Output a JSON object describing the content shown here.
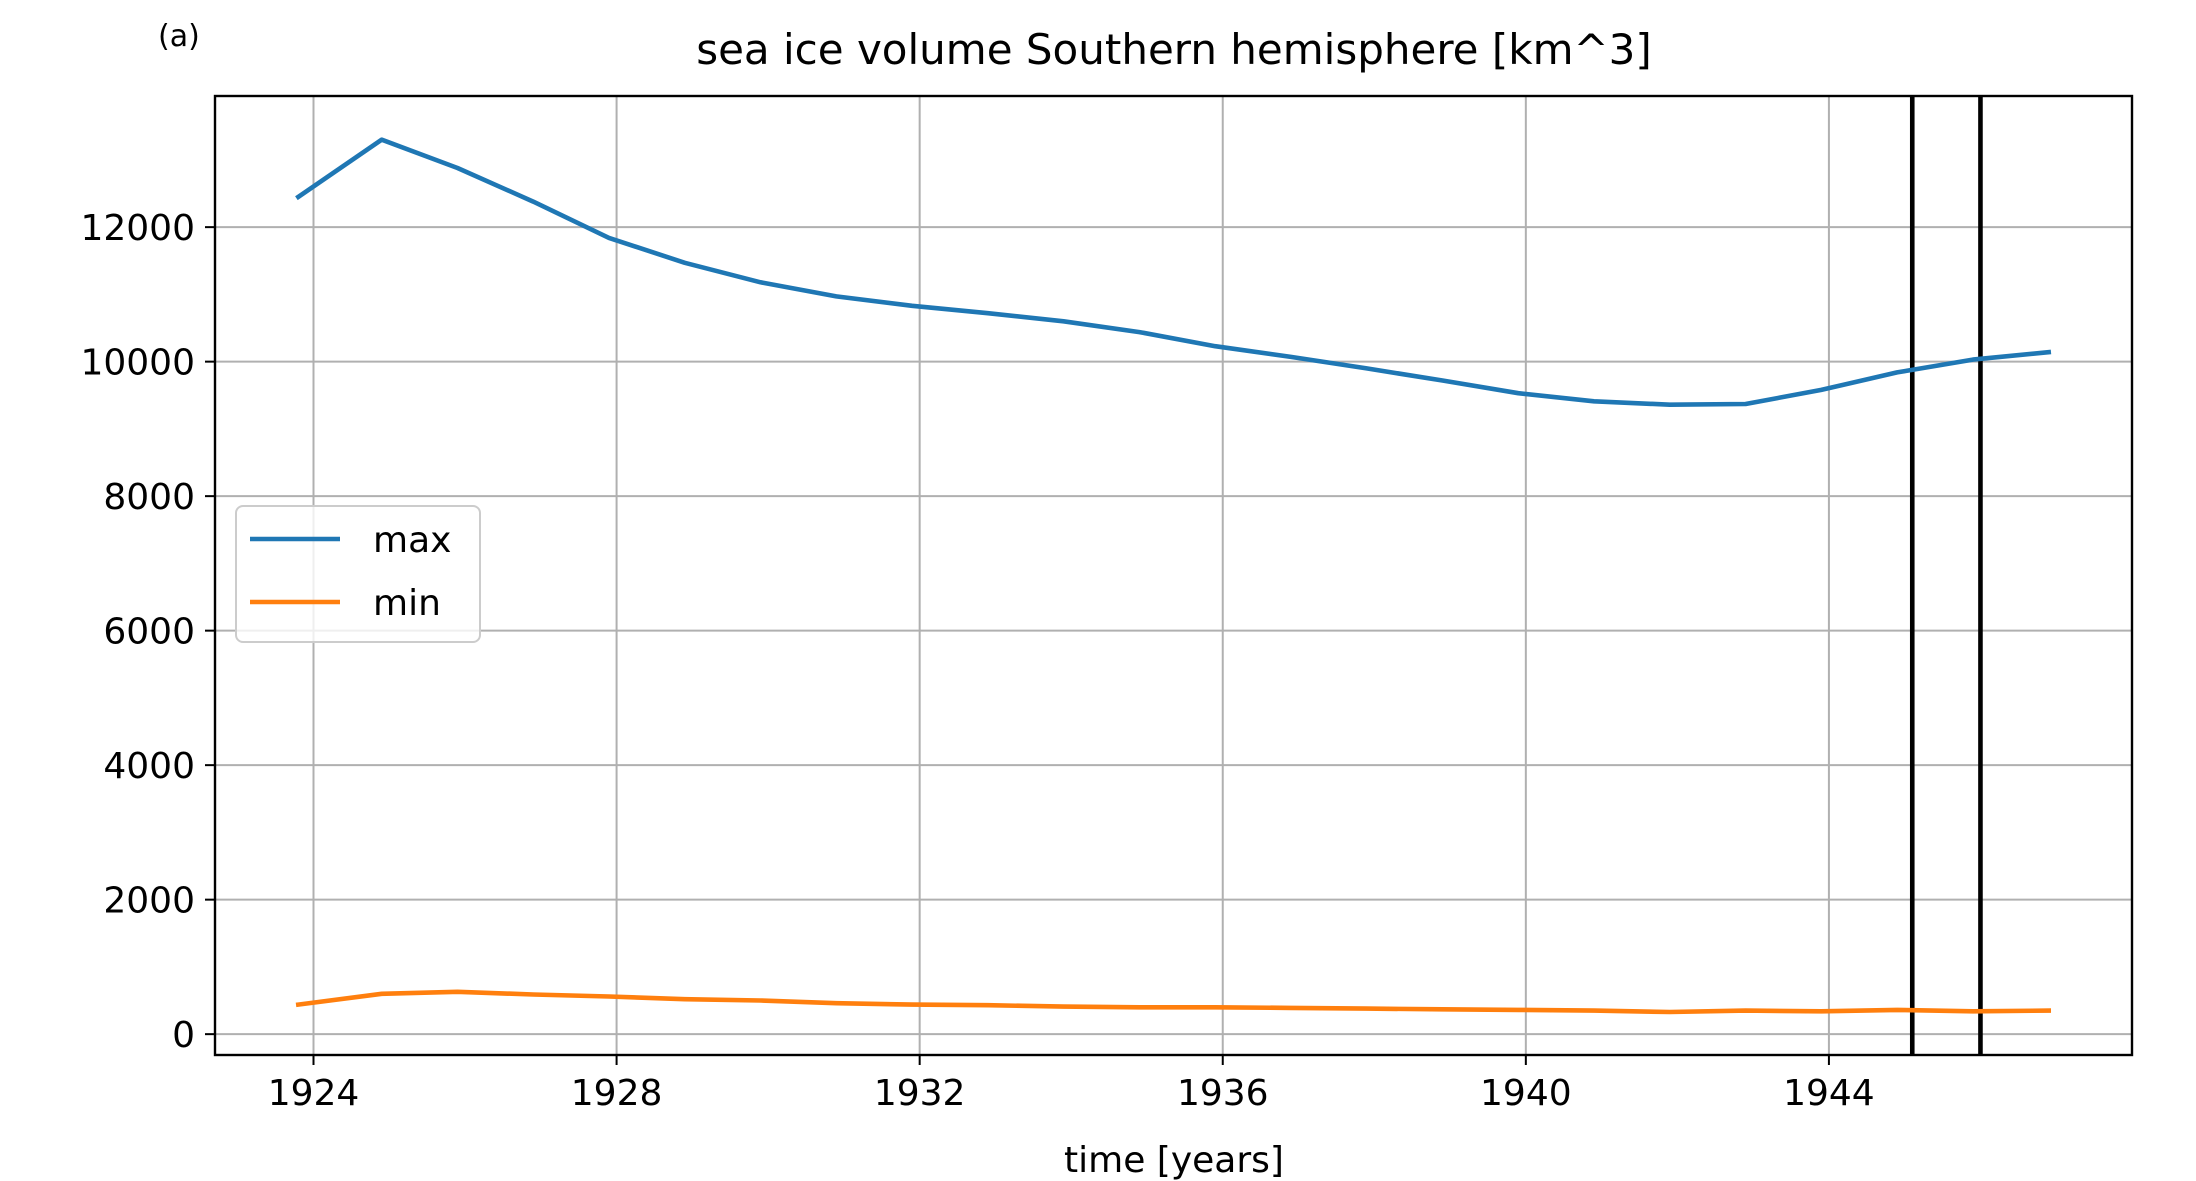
{
  "panel_label": "(a)",
  "chart_data": {
    "type": "line",
    "title": "sea ice volume Southern hemisphere [km^3]",
    "xlabel": "time [years]",
    "ylabel": "",
    "xlim": [
      1922.7,
      1948.0
    ],
    "ylim": [
      -310,
      13950
    ],
    "xticks": [
      1924,
      1928,
      1932,
      1936,
      1940,
      1944
    ],
    "yticks": [
      0,
      2000,
      4000,
      6000,
      8000,
      10000,
      12000
    ],
    "grid": true,
    "legend_position": "center-left",
    "vertical_lines": [
      1945.1,
      1946.0
    ],
    "series": [
      {
        "name": "max",
        "color": "#1f77b4",
        "x": [
          1923.8,
          1924.9,
          1925.9,
          1926.9,
          1927.9,
          1928.9,
          1929.9,
          1930.9,
          1931.9,
          1932.9,
          1933.9,
          1934.9,
          1935.9,
          1936.9,
          1937.9,
          1938.9,
          1939.9,
          1940.9,
          1941.9,
          1942.9,
          1943.9,
          1944.9,
          1945.9,
          1946.9
        ],
        "y": [
          12450,
          13300,
          12880,
          12380,
          11840,
          11470,
          11180,
          10970,
          10830,
          10720,
          10600,
          10440,
          10230,
          10070,
          9900,
          9720,
          9530,
          9410,
          9360,
          9370,
          9580,
          9840,
          10030,
          10140
        ]
      },
      {
        "name": "min",
        "color": "#ff7f0e",
        "x": [
          1923.8,
          1924.9,
          1925.9,
          1926.9,
          1927.9,
          1928.9,
          1929.9,
          1930.9,
          1931.9,
          1932.9,
          1933.9,
          1934.9,
          1935.9,
          1936.9,
          1937.9,
          1938.9,
          1939.9,
          1940.9,
          1941.9,
          1942.9,
          1943.9,
          1944.9,
          1945.9,
          1946.9
        ],
        "y": [
          440,
          600,
          630,
          590,
          560,
          520,
          500,
          460,
          440,
          430,
          410,
          400,
          400,
          390,
          380,
          370,
          360,
          350,
          330,
          350,
          340,
          360,
          340,
          350
        ]
      }
    ]
  }
}
